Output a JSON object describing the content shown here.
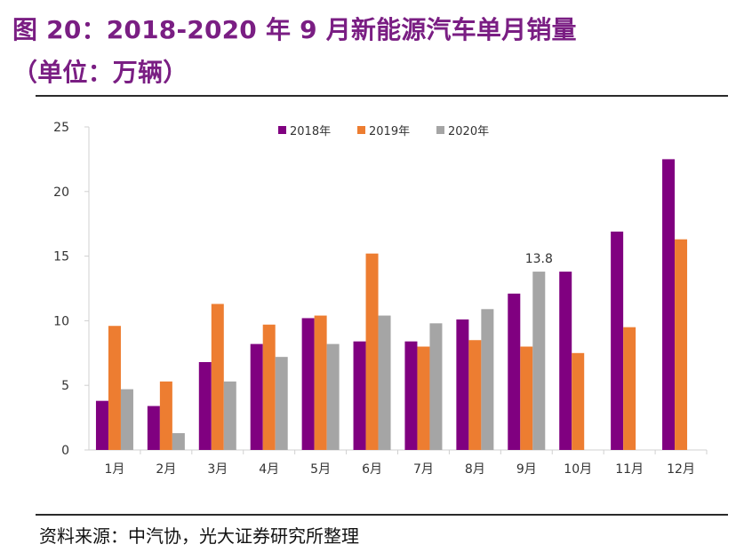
{
  "header": {
    "title_line1": "图 20：2018-2020 年 9 月新能源汽车单月销量",
    "title_line2": "（单位：万辆）"
  },
  "footer": {
    "source": "资料来源：中汽协，光大证券研究所整理"
  },
  "colors": {
    "title": "#7a1e83",
    "series_2018": "#800080",
    "series_2019": "#ED7D31",
    "series_2020": "#A5A5A5"
  },
  "chart_data": {
    "type": "bar",
    "categories": [
      "1月",
      "2月",
      "3月",
      "4月",
      "5月",
      "6月",
      "7月",
      "8月",
      "9月",
      "10月",
      "11月",
      "12月"
    ],
    "series": [
      {
        "name": "2018年",
        "color": "#800080",
        "values": [
          3.8,
          3.4,
          6.8,
          8.2,
          10.2,
          8.4,
          8.4,
          10.1,
          12.1,
          13.8,
          16.9,
          22.5
        ]
      },
      {
        "name": "2019年",
        "color": "#ED7D31",
        "values": [
          9.6,
          5.3,
          11.3,
          9.7,
          10.4,
          15.2,
          8.0,
          8.5,
          8.0,
          7.5,
          9.5,
          16.3
        ]
      },
      {
        "name": "2020年",
        "color": "#A5A5A5",
        "values": [
          4.7,
          1.3,
          5.3,
          7.2,
          8.2,
          10.4,
          9.8,
          10.9,
          13.8,
          null,
          null,
          null
        ]
      }
    ],
    "yticks": [
      "0",
      "5",
      "10",
      "15",
      "20",
      "25"
    ],
    "ylim": [
      0,
      25
    ],
    "data_labels": [
      {
        "series": 2,
        "category": 8,
        "text": "13.8"
      }
    ],
    "legend_position": "top-center",
    "grid": false
  }
}
